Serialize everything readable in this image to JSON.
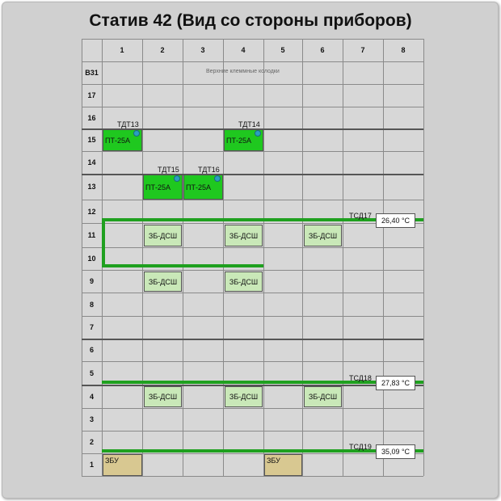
{
  "title": "Статив 42 (Вид со стороны приборов)",
  "columns": [
    "1",
    "2",
    "3",
    "4",
    "5",
    "6",
    "7",
    "8"
  ],
  "rows": [
    "В31",
    "17",
    "16",
    "15",
    "14",
    "13",
    "12",
    "11",
    "10",
    "9",
    "8",
    "7",
    "6",
    "5",
    "4",
    "3",
    "2",
    "1"
  ],
  "top_note": "Верхние клеммные колодки",
  "pt_devices": [
    {
      "tag": "ТДТ13",
      "label": "ПТ-25А"
    },
    {
      "tag": "ТДТ14",
      "label": "ПТ-25А"
    },
    {
      "tag": "ТДТ15",
      "label": "ПТ-25А"
    },
    {
      "tag": "ТДТ16",
      "label": "ПТ-25А"
    }
  ],
  "zb_devices": [
    {
      "label": "ЗБ-ДСШ"
    },
    {
      "label": "ЗБ-ДСШ"
    },
    {
      "label": "ЗБ-ДСШ"
    },
    {
      "label": "ЗБ-ДСШ"
    },
    {
      "label": "ЗБ-ДСШ"
    },
    {
      "label": "ЗБ-ДСШ"
    },
    {
      "label": "ЗБ-ДСШ"
    },
    {
      "label": "ЗБ-ДСШ"
    }
  ],
  "zbu_devices": [
    {
      "label": "ЗБУ"
    },
    {
      "label": "ЗБУ"
    }
  ],
  "sensors": [
    {
      "tag": "ТСД17",
      "value": "26,40 °C"
    },
    {
      "tag": "ТСД18",
      "value": "27,83 °C"
    },
    {
      "tag": "ТСД19",
      "value": "35,09 °C"
    }
  ],
  "colors": {
    "pt": "#1fc81f",
    "zb": "#c9e8b8",
    "zbu": "#d8c891",
    "line": "#1fa01f",
    "sensor_dot": "#2aa0c0"
  }
}
